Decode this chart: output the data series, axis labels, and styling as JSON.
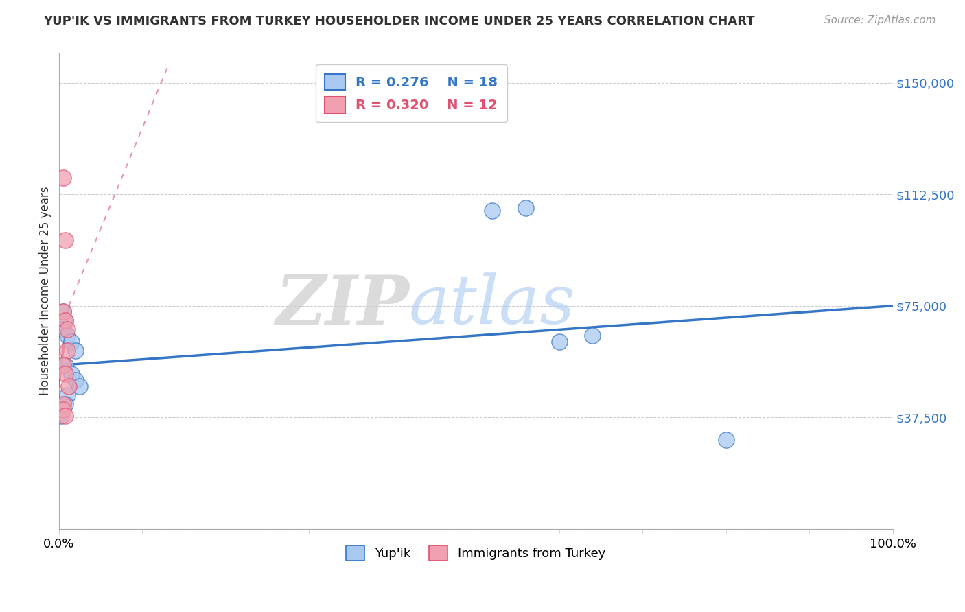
{
  "title": "YUP'IK VS IMMIGRANTS FROM TURKEY HOUSEHOLDER INCOME UNDER 25 YEARS CORRELATION CHART",
  "source": "Source: ZipAtlas.com",
  "ylabel": "Householder Income Under 25 years",
  "xlim": [
    0.0,
    1.0
  ],
  "ylim": [
    0,
    160000
  ],
  "yticks": [
    0,
    37500,
    75000,
    112500,
    150000
  ],
  "ytick_labels": [
    "",
    "$37,500",
    "$75,000",
    "$112,500",
    "$150,000"
  ],
  "xtick_labels": [
    "0.0%",
    "100.0%"
  ],
  "legend_blue_r": "0.276",
  "legend_blue_n": "18",
  "legend_pink_r": "0.320",
  "legend_pink_n": "12",
  "blue_scatter_x": [
    0.005,
    0.008,
    0.005,
    0.01,
    0.015,
    0.02,
    0.008,
    0.015,
    0.02,
    0.025,
    0.01,
    0.008,
    0.003,
    0.52,
    0.56,
    0.6,
    0.64,
    0.8
  ],
  "blue_scatter_y": [
    73000,
    70000,
    67000,
    65000,
    63000,
    60000,
    55000,
    52000,
    50000,
    48000,
    45000,
    42000,
    38000,
    107000,
    108000,
    63000,
    65000,
    30000
  ],
  "pink_scatter_x": [
    0.005,
    0.008,
    0.005,
    0.008,
    0.01,
    0.01,
    0.005,
    0.008,
    0.012,
    0.005,
    0.005,
    0.008
  ],
  "pink_scatter_y": [
    118000,
    97000,
    73000,
    70000,
    67000,
    60000,
    55000,
    52000,
    48000,
    42000,
    40000,
    38000
  ],
  "blue_line_x0": 0.0,
  "blue_line_y0": 55000,
  "blue_line_x1": 1.0,
  "blue_line_y1": 75000,
  "pink_line_solid_x0": 0.0,
  "pink_line_solid_y0": 48000,
  "pink_line_solid_x1": 0.012,
  "pink_line_solid_y1": 75000,
  "pink_line_dash_x0": 0.012,
  "pink_line_dash_y0": 75000,
  "pink_line_dash_x1": 0.13,
  "pink_line_dash_y1": 155000,
  "blue_line_color": "#3575C5",
  "pink_line_color": "#E05070",
  "blue_scatter_color": "#A8C8F0",
  "pink_scatter_color": "#F0A0B0",
  "watermark_zip": "ZIP",
  "watermark_atlas": "atlas",
  "background_color": "#FFFFFF",
  "grid_color": "#CCCCCC"
}
